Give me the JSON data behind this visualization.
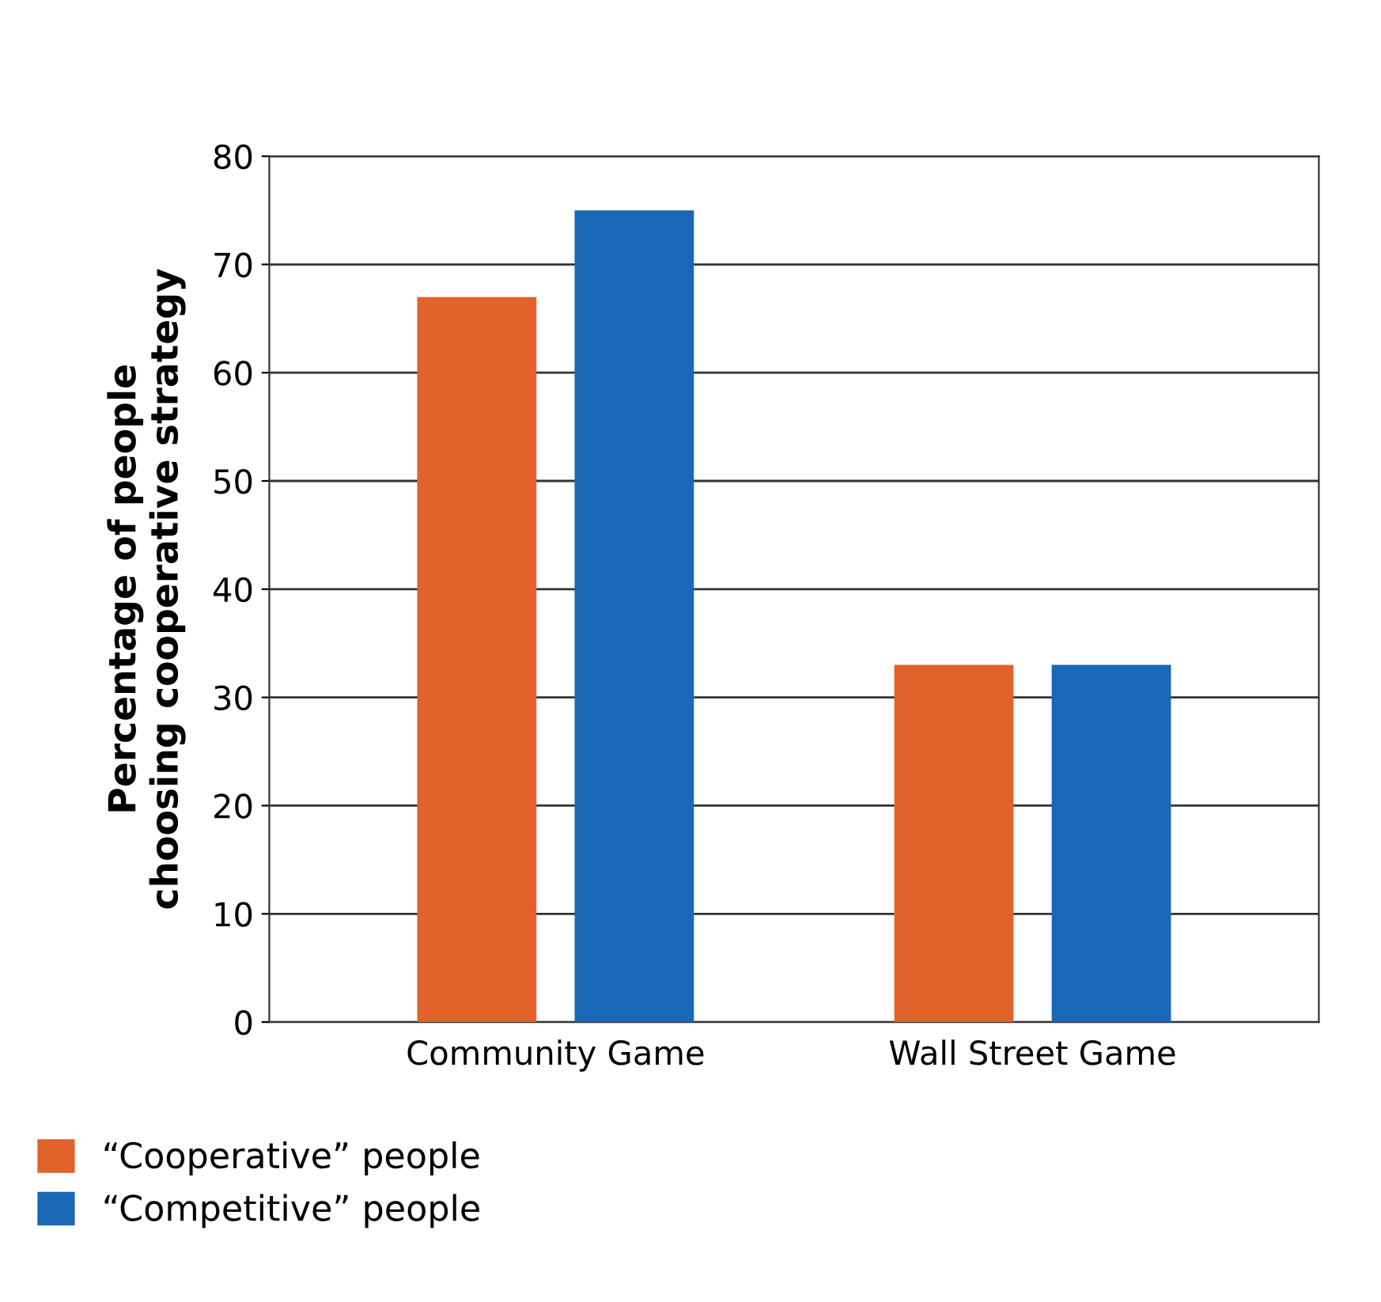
{
  "chart_data": {
    "type": "bar",
    "categories": [
      "Community Game",
      "Wall Street Game"
    ],
    "ylabel": "Percentage of people\nchoosing cooperative strategy",
    "series": [
      {
        "name": "“Cooperative” people",
        "color": "#e2622b",
        "values": [
          67,
          33
        ]
      },
      {
        "name": "“Competitive” people",
        "color": "#1a68b5",
        "values": [
          75,
          33
        ]
      }
    ],
    "ylim": [
      0,
      80
    ],
    "yticks": [
      0,
      10,
      20,
      30,
      40,
      50,
      60,
      70,
      80
    ],
    "grid": "y",
    "legend": "bottom left"
  }
}
